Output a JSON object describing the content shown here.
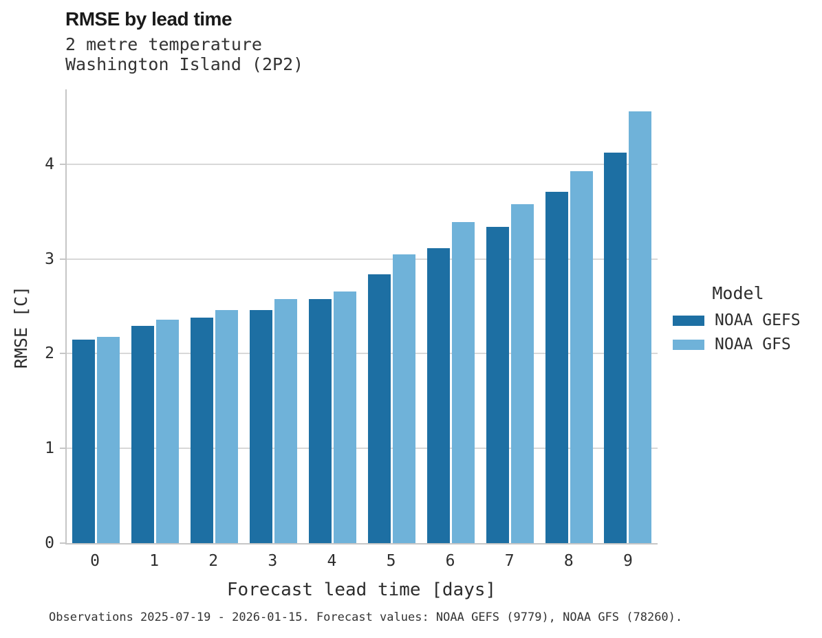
{
  "header": {
    "title": "RMSE by lead time",
    "subtitle_line1": "2 metre temperature",
    "subtitle_line2": "Washington Island (2P2)"
  },
  "chart_data": {
    "type": "bar",
    "title": "RMSE by lead time",
    "subtitle": [
      "2 metre temperature",
      "Washington Island (2P2)"
    ],
    "categories": [
      "0",
      "1",
      "2",
      "3",
      "4",
      "5",
      "6",
      "7",
      "8",
      "9"
    ],
    "series": [
      {
        "name": "NOAA GEFS",
        "color": "#1d6fa3",
        "values": [
          2.15,
          2.29,
          2.38,
          2.46,
          2.58,
          2.84,
          3.11,
          3.34,
          3.71,
          4.12
        ]
      },
      {
        "name": "NOAA GFS",
        "color": "#6fb2d9",
        "values": [
          2.18,
          2.36,
          2.46,
          2.58,
          2.66,
          3.05,
          3.39,
          3.58,
          3.93,
          4.56
        ]
      }
    ],
    "xlabel": "Forecast lead time [days]",
    "ylabel": "RMSE [C]",
    "yticks": [
      0,
      1,
      2,
      3,
      4
    ],
    "ylim": [
      0,
      4.79
    ],
    "grid": "horizontal gridlines at integer yticks",
    "legend_position": "right of plot, middle"
  },
  "legend": {
    "title": "Model",
    "items": [
      {
        "label": "NOAA GEFS",
        "color": "#1d6fa3"
      },
      {
        "label": "NOAA GFS",
        "color": "#6fb2d9"
      }
    ]
  },
  "colors": {
    "series_dark": "#1d6fa3",
    "series_light": "#6fb2d9",
    "gridline": "#d8d8d8",
    "axis_spine": "#c6c6c6",
    "text_primary": "#1a1a1a",
    "text_secondary": "#2d2d2d"
  },
  "footer": {
    "note": "Observations 2025-07-19 - 2026-01-15. Forecast values: NOAA GEFS (9779), NOAA GFS (78260)."
  }
}
